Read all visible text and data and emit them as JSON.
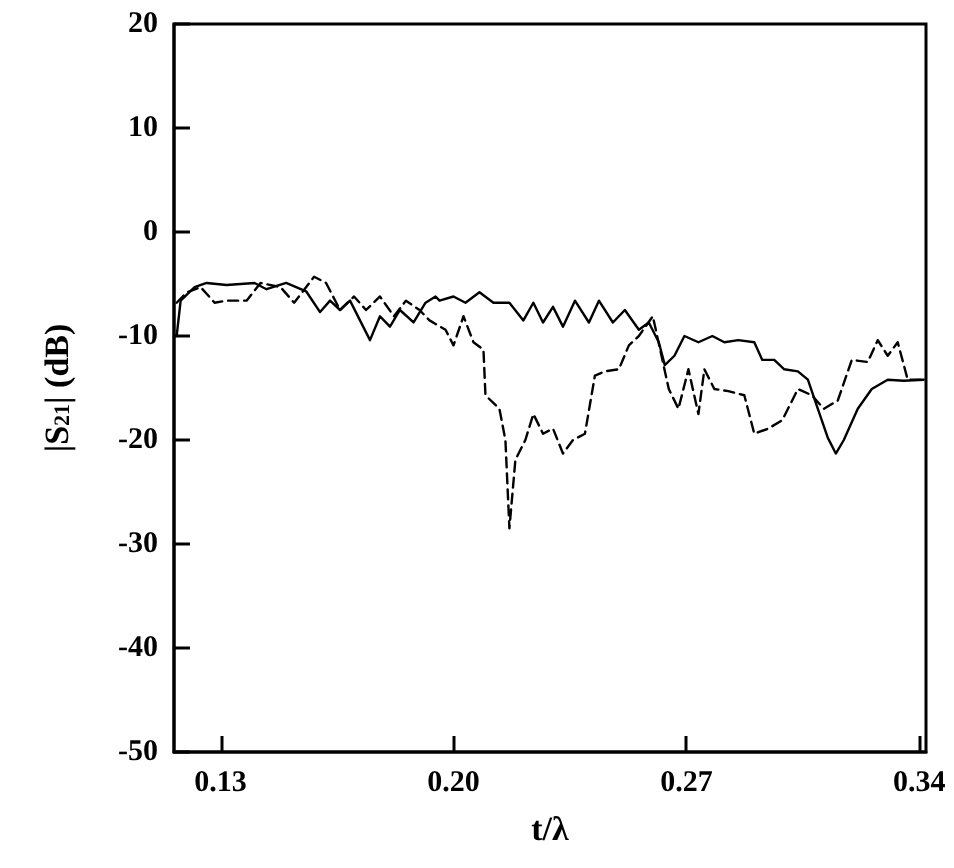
{
  "chart_data": {
    "type": "line",
    "xlabel": "t/λ",
    "ylabel": "|S$_{21}$| (dB)",
    "xlim": [
      0.116,
      0.342
    ],
    "xticks": [
      {
        "value": 0.13,
        "label": "0.13"
      },
      {
        "value": 0.2,
        "label": "0.20"
      },
      {
        "value": 0.27,
        "label": "0.27"
      },
      {
        "value": 0.34,
        "label": "0.34"
      }
    ],
    "ylim": [
      -50,
      20
    ],
    "yticks": [
      -50,
      -40,
      -30,
      -20,
      -10,
      0,
      10,
      20
    ],
    "marker": "none",
    "series": [
      {
        "color": "#000000",
        "line_style": "solid",
        "x": [
          0.1168,
          0.118,
          0.1222,
          0.1258,
          0.1318,
          0.1402,
          0.1438,
          0.1497,
          0.1557,
          0.1599,
          0.1629,
          0.1659,
          0.1689,
          0.1719,
          0.1749,
          0.1779,
          0.1809,
          0.1839,
          0.188,
          0.1916,
          0.1946,
          0.1958,
          0.2,
          0.2036,
          0.2078,
          0.212,
          0.2168,
          0.221,
          0.224,
          0.2269,
          0.2299,
          0.2329,
          0.2365,
          0.2407,
          0.2437,
          0.2479,
          0.2515,
          0.2557,
          0.2587,
          0.2617,
          0.2635,
          0.2664,
          0.2694,
          0.2736,
          0.2778,
          0.2814,
          0.2856,
          0.2904,
          0.2928,
          0.2964,
          0.2994,
          0.3035,
          0.3065,
          0.3095,
          0.3125,
          0.3149,
          0.3173,
          0.3215,
          0.3257,
          0.3305,
          0.3353,
          0.3413
        ],
        "values": [
          -10,
          -6.6,
          -5.3,
          -4.9,
          -5.1,
          -4.9,
          -5.5,
          -4.9,
          -5.7,
          -7.7,
          -6.6,
          -7.5,
          -6.6,
          -8.5,
          -10.4,
          -8.1,
          -9.1,
          -7.5,
          -8.7,
          -6.8,
          -6.2,
          -6.6,
          -6.2,
          -6.8,
          -5.8,
          -6.8,
          -6.8,
          -8.5,
          -6.8,
          -8.7,
          -7.2,
          -9.1,
          -6.6,
          -8.7,
          -6.6,
          -8.7,
          -7.5,
          -9.4,
          -8.7,
          -10.6,
          -12.8,
          -11.9,
          -10,
          -10.6,
          -10,
          -10.6,
          -10.4,
          -10.6,
          -12.3,
          -12.3,
          -13.2,
          -13.4,
          -14.2,
          -17,
          -19.8,
          -21.3,
          -20,
          -17,
          -15.1,
          -14.2,
          -14.3,
          -14.2
        ]
      },
      {
        "color": "#000000",
        "line_style": "dashed",
        "x": [
          0.1168,
          0.1198,
          0.124,
          0.1282,
          0.1318,
          0.1378,
          0.142,
          0.148,
          0.1521,
          0.1581,
          0.1617,
          0.1659,
          0.1701,
          0.1737,
          0.1779,
          0.1821,
          0.1857,
          0.1898,
          0.1928,
          0.1976,
          0.2,
          0.203,
          0.206,
          0.209,
          0.2096,
          0.2138,
          0.2156,
          0.2168,
          0.2186,
          0.2216,
          0.224,
          0.2269,
          0.2299,
          0.2329,
          0.2359,
          0.2395,
          0.2425,
          0.2455,
          0.2497,
          0.2527,
          0.2557,
          0.2599,
          0.2647,
          0.2676,
          0.2706,
          0.2736,
          0.2754,
          0.2784,
          0.2826,
          0.2874,
          0.2904,
          0.2946,
          0.2988,
          0.3035,
          0.3077,
          0.3113,
          0.3155,
          0.3197,
          0.3245,
          0.3275,
          0.3305,
          0.3335,
          0.3365,
          0.3413
        ],
        "values": [
          -6.8,
          -5.8,
          -5.3,
          -6.8,
          -6.6,
          -6.6,
          -4.9,
          -5.3,
          -6.8,
          -4.3,
          -4.9,
          -7.5,
          -6.2,
          -7.5,
          -6.2,
          -8.1,
          -6.6,
          -7.5,
          -8.5,
          -9.4,
          -10.9,
          -8.1,
          -10.6,
          -11.3,
          -15.7,
          -17,
          -20,
          -28.5,
          -21.9,
          -20,
          -17.5,
          -19.4,
          -18.9,
          -21.3,
          -20,
          -19.4,
          -13.8,
          -13.4,
          -13.2,
          -10.9,
          -10,
          -8.1,
          -15.1,
          -17,
          -13.2,
          -17.5,
          -13.2,
          -15.1,
          -15.3,
          -15.7,
          -19.4,
          -18.9,
          -18.1,
          -15.1,
          -15.7,
          -17,
          -16.2,
          -12.3,
          -12.5,
          -10.4,
          -11.9,
          -10.6,
          -14.2,
          -14.2
        ]
      }
    ]
  }
}
